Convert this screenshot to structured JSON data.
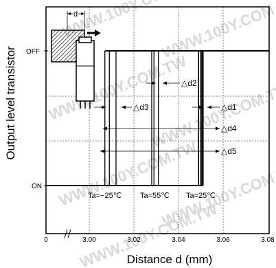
{
  "chart_data": {
    "type": "line",
    "xlabel": "Distance d (mm)",
    "ylabel": "Output level transistor",
    "x_ticks": [
      "0",
      "3.00",
      "3.02",
      "3.04",
      "3.06",
      "3.08"
    ],
    "y_states": [
      "OFF",
      "ON"
    ],
    "xlim": [
      2.98,
      3.08
    ],
    "axis_break": "between 0 and 3.00",
    "grid": true,
    "series": [
      {
        "name": "Ta=−25℃",
        "on_to_off_start": 3.007,
        "on_to_off_end": 3.012,
        "lines": [
          3.007,
          3.009,
          3.012
        ]
      },
      {
        "name": "Ta=55℃",
        "on_to_off_start": 3.028,
        "on_to_off_end": 3.031,
        "lines": [
          3.028,
          3.029,
          3.031
        ]
      },
      {
        "name": "Ta=25℃",
        "on_to_off_start": 3.049,
        "on_to_off_end": 3.051,
        "lines": [
          3.049,
          3.05,
          3.0505,
          3.051
        ]
      }
    ],
    "annotations": [
      "d",
      "△d1",
      "△d2",
      "△d3",
      "△d4",
      "△d5"
    ]
  },
  "watermark": "WWW.100Y.COM.TW"
}
